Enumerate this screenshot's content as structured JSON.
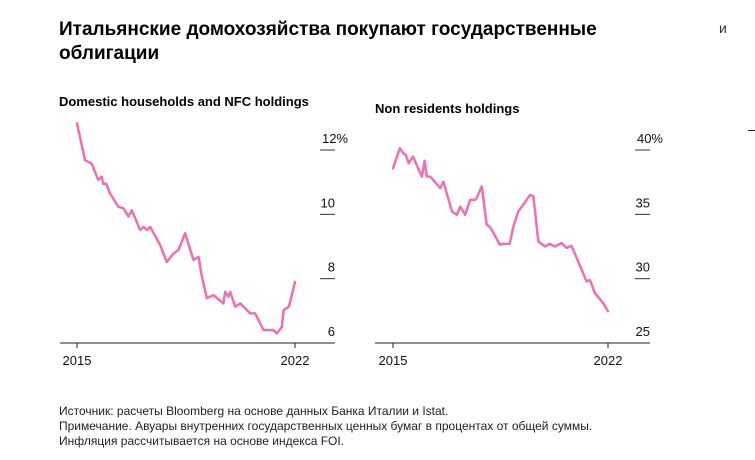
{
  "title": "Итальянские домохозяйства покупают государственные облигации",
  "footer": {
    "source": "Источник: расчеты Bloomberg на основе данных Банка Италии и Istat.",
    "note": "Примечание. Авуары внутренних государственных ценных бумаг в процентах от общей суммы.",
    "inflation": "Инфляция рассчитывается на основе индекса FOI."
  },
  "edge_text": "и",
  "chart_data": [
    {
      "type": "line",
      "title": "Domestic households and NFC holdings",
      "color": "#f06eb4",
      "xlim": [
        2015,
        2022
      ],
      "ylim": [
        6,
        12
      ],
      "x_ticks": [
        "2015",
        "2022"
      ],
      "y_ticks": [
        "12%",
        "10",
        "8",
        "6"
      ],
      "y_tick_values": [
        12,
        10,
        8,
        6
      ],
      "x": [
        2015.0,
        2015.26,
        2015.47,
        2015.68,
        2015.79,
        2015.84,
        2015.94,
        2016.06,
        2016.33,
        2016.49,
        2016.65,
        2016.76,
        2017.03,
        2017.14,
        2017.25,
        2017.35,
        2017.67,
        2017.88,
        2018.1,
        2018.26,
        2018.47,
        2018.74,
        2018.9,
        2019.01,
        2019.17,
        2019.38,
        2019.7,
        2019.76,
        2019.86,
        2019.92,
        2020.08,
        2020.24,
        2020.56,
        2020.72,
        2020.99,
        2021.31,
        2021.42,
        2021.58,
        2021.63,
        2021.8,
        2021.85,
        2022.0
      ],
      "y": [
        12.83,
        11.68,
        11.58,
        11.07,
        11.17,
        10.95,
        10.95,
        10.65,
        10.23,
        10.19,
        9.93,
        10.13,
        9.51,
        9.61,
        9.51,
        9.61,
        9.04,
        8.52,
        8.78,
        8.89,
        9.41,
        8.58,
        8.68,
        8.06,
        7.39,
        7.49,
        7.23,
        7.59,
        7.44,
        7.59,
        7.13,
        7.23,
        6.92,
        6.92,
        6.4,
        6.4,
        6.3,
        6.5,
        7.02,
        7.13,
        7.3,
        7.9
      ]
    },
    {
      "type": "line",
      "title": "Non residents holdings",
      "color": "#f06eb4",
      "xlim": [
        2015,
        2022
      ],
      "ylim": [
        25,
        40
      ],
      "x_ticks": [
        "2015",
        "2022"
      ],
      "y_ticks": [
        "40%",
        "35",
        "30",
        "25"
      ],
      "y_tick_values": [
        40,
        35,
        30,
        25
      ],
      "x": [
        2015.0,
        2015.22,
        2015.34,
        2015.42,
        2015.51,
        2015.65,
        2015.94,
        2016.03,
        2016.1,
        2016.21,
        2016.54,
        2016.64,
        2016.92,
        2017.08,
        2017.19,
        2017.35,
        2017.51,
        2017.67,
        2017.72,
        2017.89,
        2018.05,
        2018.16,
        2018.48,
        2018.59,
        2018.8,
        2018.92,
        2019.08,
        2019.24,
        2019.46,
        2019.57,
        2019.73,
        2019.95,
        2020.1,
        2020.27,
        2020.49,
        2020.65,
        2020.81,
        2021.03,
        2021.3,
        2021.41,
        2021.57,
        2021.84,
        2022.0
      ],
      "y": [
        38.58,
        40.13,
        39.74,
        39.6,
        38.97,
        39.48,
        37.93,
        39.17,
        37.93,
        37.93,
        37.03,
        37.54,
        35.22,
        34.96,
        35.6,
        34.96,
        36.12,
        36.12,
        36.25,
        37.16,
        34.19,
        34.0,
        32.64,
        32.7,
        32.7,
        34.06,
        35.22,
        35.74,
        36.51,
        36.4,
        32.9,
        32.5,
        32.7,
        32.5,
        32.77,
        32.4,
        32.56,
        31.34,
        29.79,
        29.9,
        28.89,
        28.12,
        27.47
      ]
    }
  ]
}
